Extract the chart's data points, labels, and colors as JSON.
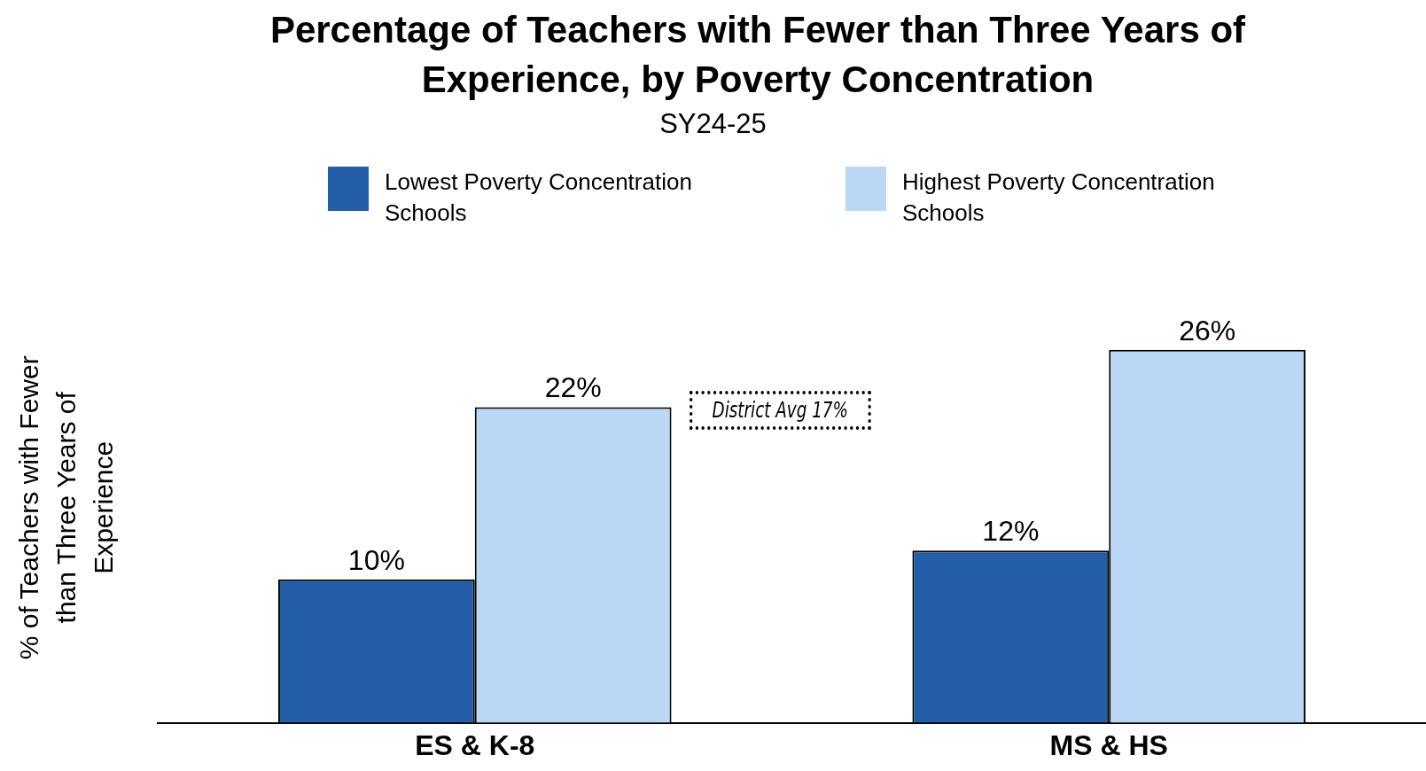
{
  "chart_data": {
    "type": "bar",
    "title": "Percentage of Teachers with Fewer than Three Years of Experience, by Poverty Concentration",
    "subtitle": "SY24-25",
    "ylabel": "% of Teachers with Fewer than Three Years of Experience",
    "categories": [
      "ES & K-8",
      "MS & HS"
    ],
    "series": [
      {
        "name": "Lowest Poverty Concentration Schools",
        "color": "#245ea8",
        "values": [
          10,
          12
        ],
        "value_labels": [
          "10%",
          "12%"
        ]
      },
      {
        "name": "Highest Poverty Concentration Schools",
        "color": "#bad8f5",
        "values": [
          22,
          26
        ],
        "value_labels": [
          "22%",
          "26%"
        ]
      }
    ],
    "legend": "top",
    "grid": false,
    "tick_labels": "x",
    "annotations": [
      "District Avg 17%"
    ]
  }
}
